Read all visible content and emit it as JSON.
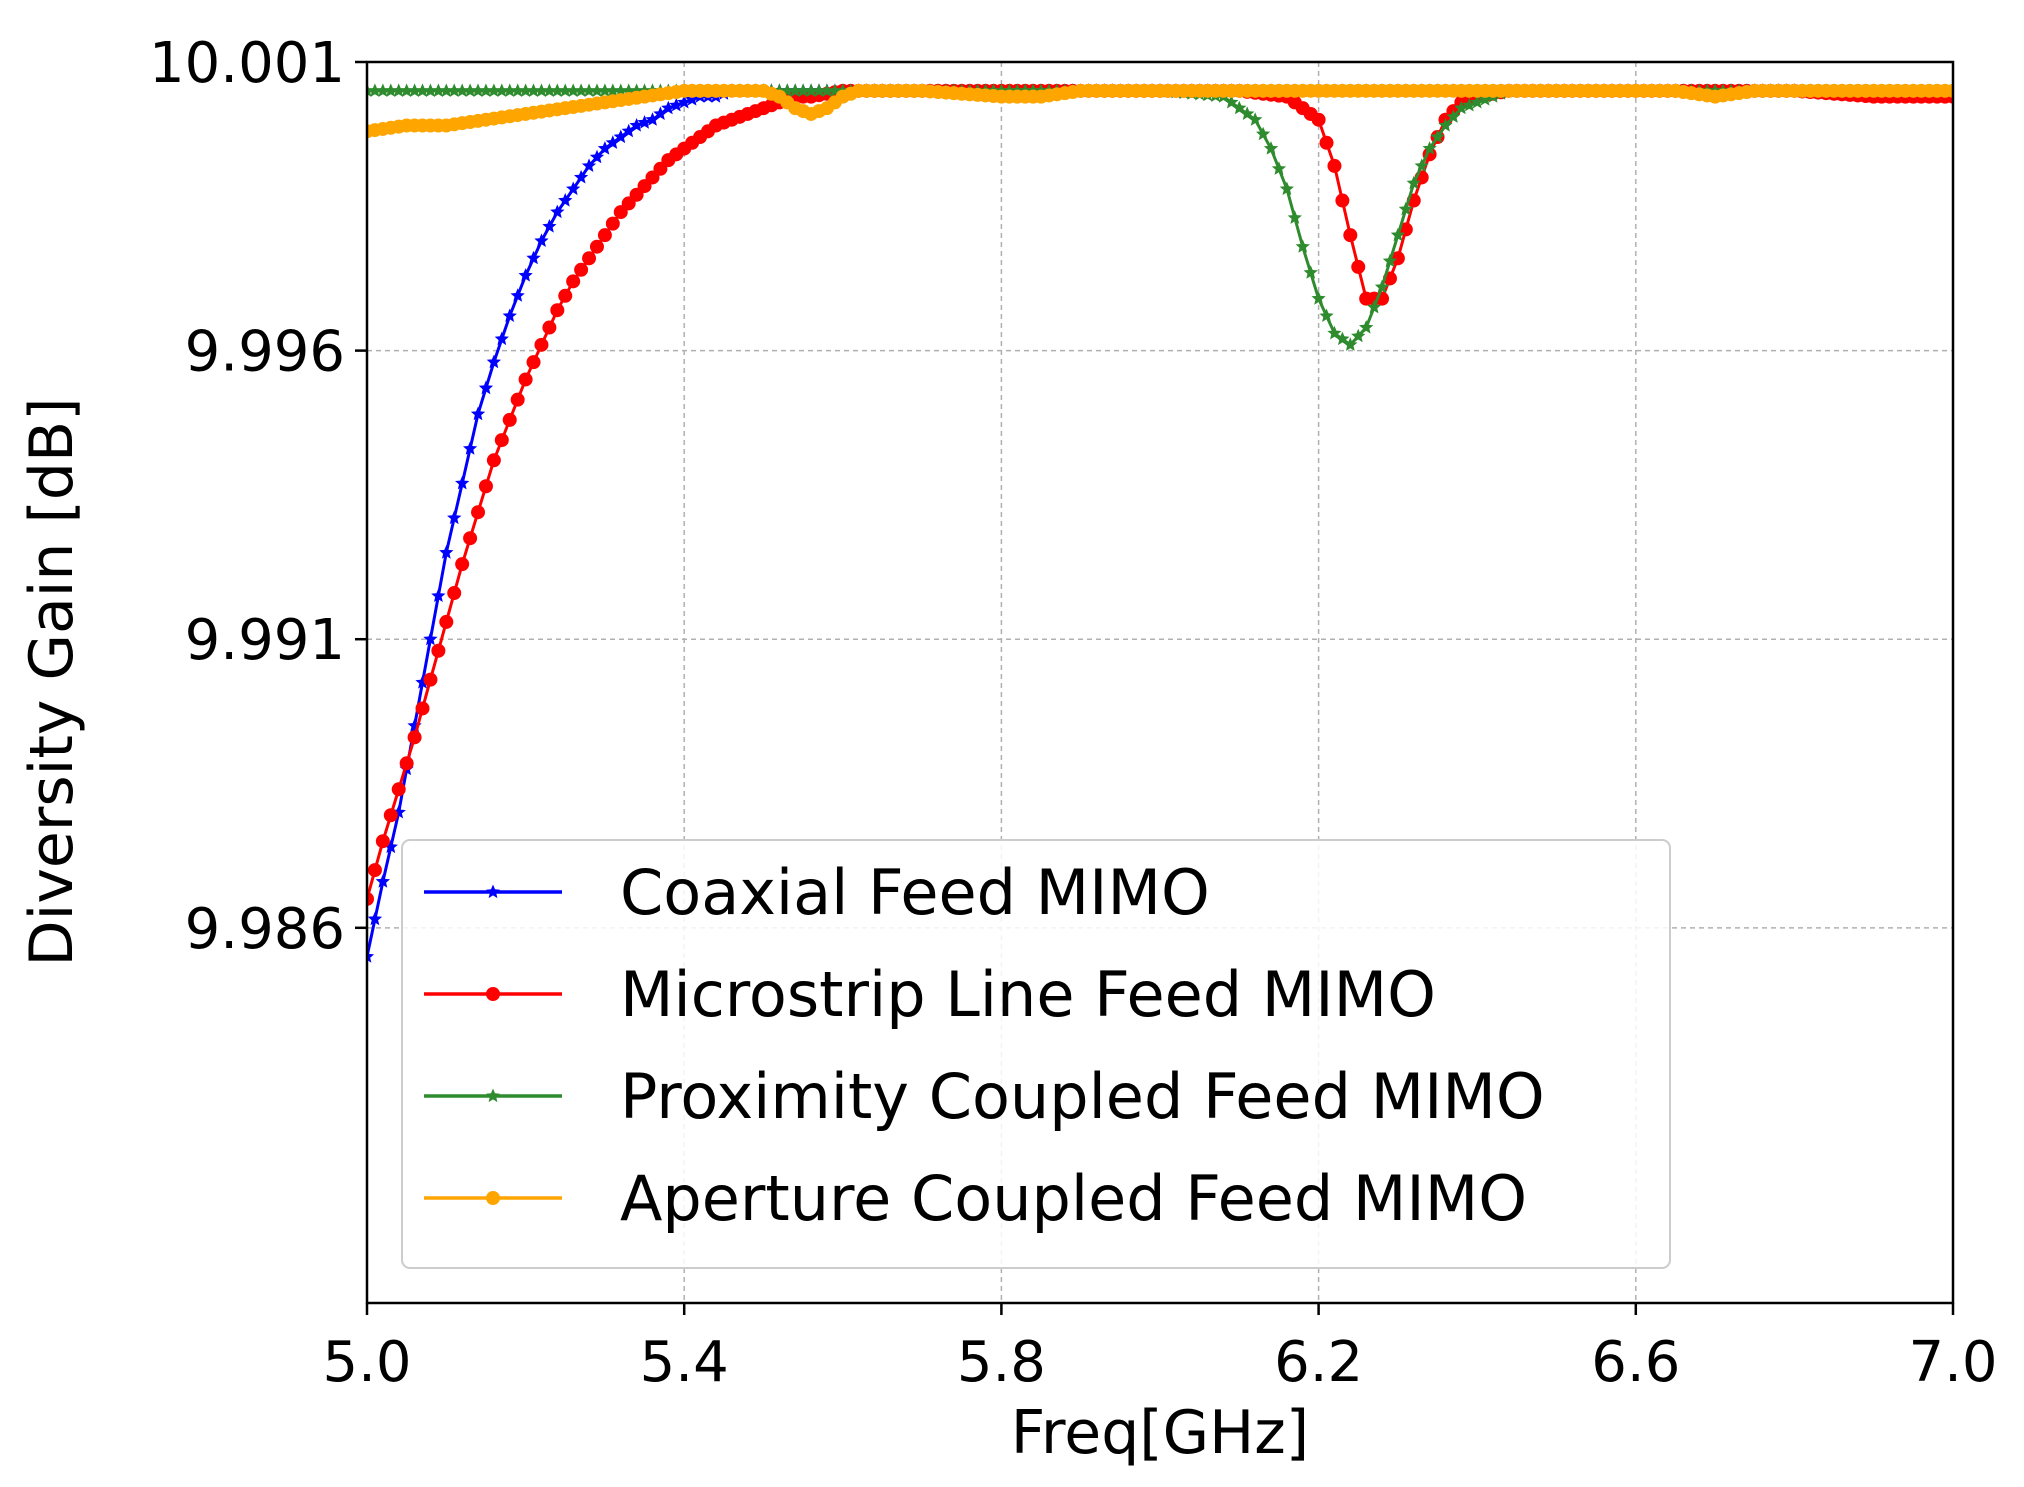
{
  "chart_data": {
    "type": "line",
    "title": "",
    "xlabel": "Freq[GHz]",
    "ylabel": "Diversity Gain [dB]",
    "xlim": [
      5.0,
      7.0
    ],
    "ylim": [
      9.9795,
      10.001
    ],
    "xticks": [
      5.0,
      5.4,
      5.8,
      6.2,
      6.6,
      7.0
    ],
    "xtick_labels": [
      "5.0",
      "5.4",
      "5.8",
      "6.2",
      "6.6",
      "7.0"
    ],
    "yticks": [
      9.986,
      9.991,
      9.996,
      10.001
    ],
    "ytick_labels": [
      "9.986",
      "9.991",
      "9.996",
      "10.001"
    ],
    "grid": true,
    "legend_position": "lower-left",
    "series": [
      {
        "name": "Coaxial Feed MIMO",
        "color": "#0000ff",
        "marker": "star",
        "x": [
          5.0,
          5.02,
          5.04,
          5.06,
          5.08,
          5.1,
          5.12,
          5.14,
          5.16,
          5.18,
          5.2,
          5.22,
          5.24,
          5.26,
          5.28,
          5.3,
          5.32,
          5.34,
          5.36,
          5.38,
          5.4,
          5.42,
          5.44,
          5.46,
          5.5,
          5.6,
          5.7,
          5.8,
          5.9,
          6.0,
          6.1,
          6.2,
          6.3,
          6.4,
          6.5,
          6.6,
          6.7,
          6.8,
          6.9,
          7.0
        ],
        "y": [
          9.9855,
          9.9868,
          9.988,
          9.9895,
          9.991,
          9.9925,
          9.9937,
          9.9949,
          9.9958,
          9.9966,
          9.9973,
          9.9979,
          9.9984,
          9.9988,
          9.9992,
          9.9995,
          9.9997,
          9.9999,
          10.0,
          10.0002,
          10.0003,
          10.0004,
          10.0004,
          10.0005,
          10.0005,
          10.0005,
          10.0005,
          10.0005,
          10.0005,
          10.0005,
          10.0005,
          10.0005,
          10.0005,
          10.0005,
          10.0005,
          10.0005,
          10.0005,
          10.0005,
          10.0004,
          10.0004
        ]
      },
      {
        "name": "Microstrip Line Feed MIMO",
        "color": "#ff0000",
        "marker": "circle",
        "x": [
          5.0,
          5.02,
          5.04,
          5.06,
          5.08,
          5.1,
          5.12,
          5.14,
          5.16,
          5.18,
          5.2,
          5.22,
          5.24,
          5.26,
          5.28,
          5.3,
          5.32,
          5.34,
          5.36,
          5.38,
          5.4,
          5.42,
          5.44,
          5.46,
          5.48,
          5.5,
          5.52,
          5.54,
          5.56,
          5.6,
          5.7,
          5.8,
          5.9,
          6.0,
          6.1,
          6.16,
          6.2,
          6.22,
          6.24,
          6.26,
          6.28,
          6.3,
          6.32,
          6.34,
          6.36,
          6.38,
          6.4,
          6.44,
          6.5,
          6.6,
          6.7,
          6.8,
          6.9,
          7.0
        ],
        "y": [
          9.9865,
          9.9875,
          9.9884,
          9.9893,
          9.9903,
          9.9913,
          9.9923,
          9.9932,
          9.9941,
          9.9948,
          9.9955,
          9.9961,
          9.9967,
          9.9972,
          9.9976,
          9.998,
          9.9984,
          9.9987,
          9.999,
          9.9993,
          9.9995,
          9.9997,
          9.9999,
          10.0,
          10.0001,
          10.0002,
          10.0003,
          10.0004,
          10.0004,
          10.0005,
          10.0005,
          10.0005,
          10.0005,
          10.0005,
          10.0005,
          10.0004,
          10.0,
          9.9992,
          9.998,
          9.9969,
          9.9969,
          9.9976,
          9.9986,
          9.9994,
          10.0,
          10.0003,
          10.0004,
          10.0005,
          10.0005,
          10.0005,
          10.0005,
          10.0005,
          10.0004,
          10.0004
        ]
      },
      {
        "name": "Proximity Coupled Feed MIMO",
        "color": "#2e8b2e",
        "marker": "star",
        "x": [
          5.0,
          5.1,
          5.2,
          5.3,
          5.4,
          5.5,
          5.6,
          5.7,
          5.8,
          5.9,
          6.0,
          6.08,
          6.12,
          6.14,
          6.16,
          6.18,
          6.2,
          6.22,
          6.24,
          6.26,
          6.28,
          6.3,
          6.32,
          6.34,
          6.36,
          6.38,
          6.4,
          6.44,
          6.5,
          6.6,
          6.7,
          6.8,
          6.9,
          7.0
        ],
        "y": [
          10.0005,
          10.0005,
          10.0005,
          10.0005,
          10.0005,
          10.0005,
          10.0005,
          10.0005,
          10.0005,
          10.0005,
          10.0005,
          10.0004,
          10.0,
          9.9995,
          9.9988,
          9.9978,
          9.9969,
          9.9963,
          9.9961,
          9.9964,
          9.9971,
          9.998,
          9.9989,
          9.9995,
          9.9999,
          10.0002,
          10.0003,
          10.0005,
          10.0005,
          10.0005,
          10.0005,
          10.0005,
          10.0005,
          10.0005
        ]
      },
      {
        "name": "Aperture Coupled Feed MIMO",
        "color": "#ffa500",
        "marker": "circle",
        "x": [
          5.0,
          5.05,
          5.1,
          5.15,
          5.2,
          5.25,
          5.3,
          5.35,
          5.4,
          5.45,
          5.5,
          5.52,
          5.54,
          5.56,
          5.58,
          5.6,
          5.62,
          5.64,
          5.7,
          5.8,
          5.85,
          5.9,
          6.0,
          6.1,
          6.2,
          6.3,
          6.4,
          6.5,
          6.6,
          6.65,
          6.7,
          6.75,
          6.8,
          6.9,
          7.0
        ],
        "y": [
          9.9998,
          9.9999,
          9.9999,
          10.0,
          10.0001,
          10.0002,
          10.0003,
          10.0004,
          10.0005,
          10.0005,
          10.0005,
          10.0004,
          10.0002,
          10.0001,
          10.0002,
          10.0004,
          10.0005,
          10.0005,
          10.0005,
          10.0004,
          10.0004,
          10.0005,
          10.0005,
          10.0005,
          10.0005,
          10.0005,
          10.0005,
          10.0005,
          10.0005,
          10.0005,
          10.0004,
          10.0005,
          10.0005,
          10.0005,
          10.0005
        ]
      }
    ]
  }
}
